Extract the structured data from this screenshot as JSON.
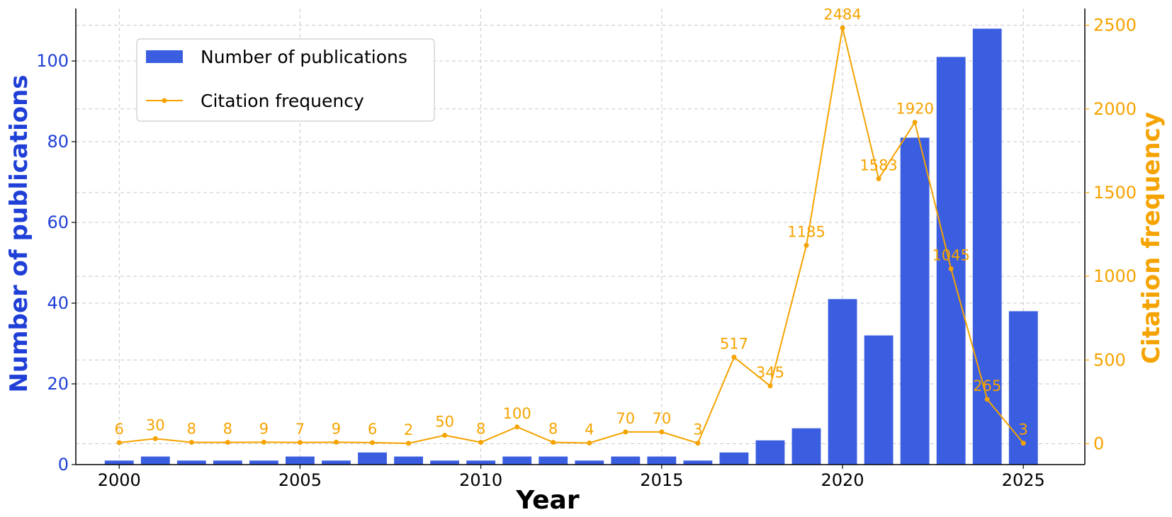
{
  "chart_data": {
    "type": "bar",
    "title": "",
    "xlabel": "Year",
    "ylabel": "Number of publications",
    "y2label": "Citation frequency",
    "x": [
      2000,
      2001,
      2002,
      2003,
      2004,
      2005,
      2006,
      2007,
      2008,
      2009,
      2010,
      2011,
      2012,
      2013,
      2014,
      2015,
      2016,
      2017,
      2018,
      2019,
      2020,
      2021,
      2022,
      2023,
      2024,
      2025
    ],
    "x_ticks": [
      "2000",
      "2005",
      "2010",
      "2015",
      "2020",
      "2025"
    ],
    "xlim": [
      1998.8,
      2026.7
    ],
    "ylim": [
      0,
      113
    ],
    "y_ticks": [
      "0",
      "20",
      "40",
      "60",
      "80",
      "100"
    ],
    "y2lim": [
      -125,
      2600
    ],
    "y2_ticks": [
      "0",
      "500",
      "1000",
      "1500",
      "2000",
      "2500"
    ],
    "grid": true,
    "legend_position": "top-left",
    "series": [
      {
        "name": "Number of publications",
        "type": "bar",
        "axis": "left",
        "color": "#3b5ee0",
        "values": [
          1,
          2,
          1,
          1,
          1,
          2,
          1,
          3,
          2,
          1,
          1,
          2,
          2,
          1,
          2,
          2,
          1,
          3,
          6,
          9,
          41,
          32,
          81,
          101,
          108,
          38
        ]
      },
      {
        "name": "Citation frequency",
        "type": "line",
        "axis": "right",
        "color": "#f5a300",
        "values": [
          6,
          30,
          8,
          8,
          9,
          7,
          9,
          6,
          2,
          50,
          8,
          100,
          8,
          4,
          70,
          70,
          3,
          517,
          345,
          1185,
          2484,
          1583,
          1920,
          1045,
          265,
          3
        ],
        "labels": [
          "6",
          "30",
          "8",
          "8",
          "9",
          "7",
          "9",
          "6",
          "2",
          "50",
          "8",
          "100",
          "8",
          "4",
          "70",
          "70",
          "3",
          "517",
          "345",
          "1185",
          "2484",
          "1583",
          "1920",
          "1045",
          "265",
          "3"
        ]
      }
    ]
  }
}
